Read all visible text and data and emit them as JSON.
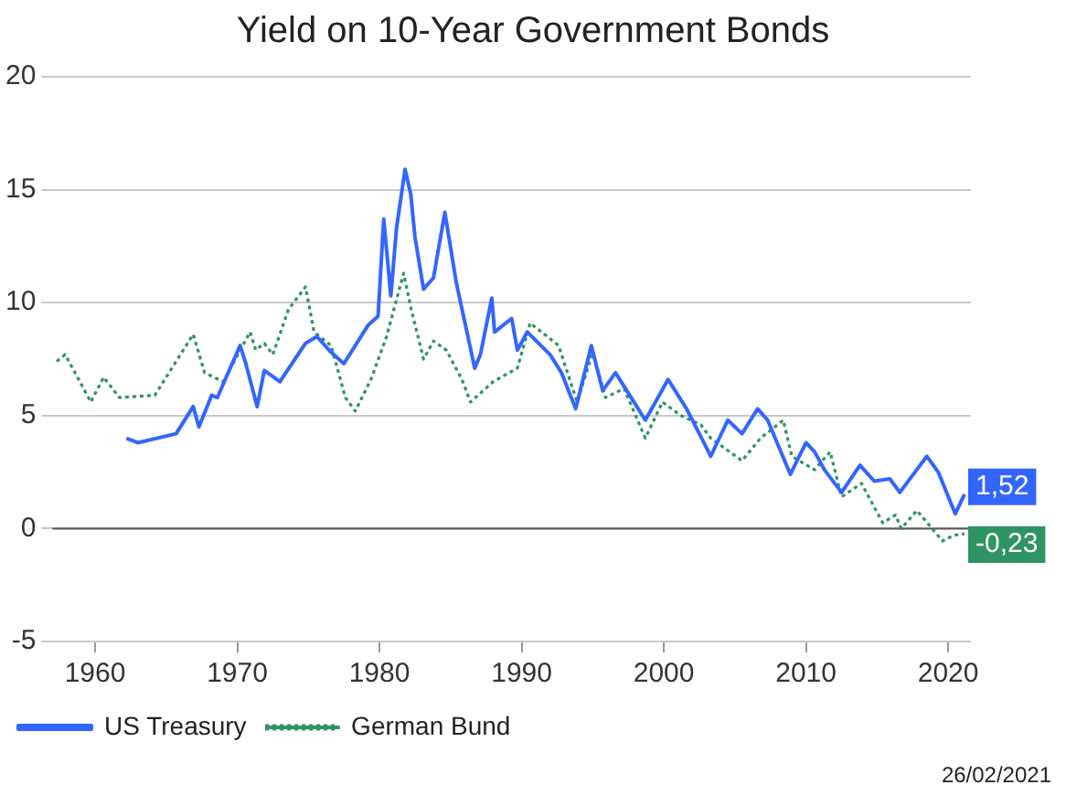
{
  "chart_data": {
    "type": "line",
    "title": "Yield on 10-Year Government Bonds",
    "xlim": [
      1957,
      2021.6
    ],
    "xticks": [
      1960,
      1970,
      1980,
      1990,
      2000,
      2010,
      2020
    ],
    "ylim": [
      -5,
      20
    ],
    "yticks": [
      -5,
      0,
      5,
      10,
      15,
      20
    ],
    "grid": "y",
    "legend": "bottom",
    "ref_lines": [
      {
        "axis": "y",
        "value": 0,
        "color": "#555555"
      }
    ],
    "series": [
      {
        "name": "US Treasury",
        "color": "#3366ff",
        "line_style": "solid",
        "x": [
          1962.2,
          1963.0,
          1965.7,
          1966.9,
          1967.3,
          1968.2,
          1968.6,
          1970.2,
          1970.6,
          1971.4,
          1971.9,
          1973.0,
          1974.8,
          1975.6,
          1976.6,
          1977.5,
          1979.2,
          1979.9,
          1980.3,
          1980.8,
          1981.2,
          1981.8,
          1982.2,
          1982.5,
          1983.1,
          1983.8,
          1984.6,
          1985.4,
          1986.7,
          1987.1,
          1987.9,
          1988.1,
          1989.3,
          1989.7,
          1990.4,
          1992.0,
          1992.8,
          1993.8,
          1994.9,
          1995.7,
          1996.6,
          1997.4,
          1998.7,
          2000.3,
          2001.6,
          2002.9,
          2003.3,
          2004.5,
          2005.5,
          2006.6,
          2007.3,
          2008.9,
          2010.0,
          2010.6,
          2011.3,
          2012.5,
          2013.8,
          2014.8,
          2015.9,
          2016.6,
          2018.5,
          2019.3,
          2020.5,
          2021.15
        ],
        "values": [
          4.0,
          3.8,
          4.2,
          5.4,
          4.5,
          5.9,
          5.8,
          8.1,
          7.3,
          5.4,
          7.0,
          6.5,
          8.2,
          8.5,
          7.8,
          7.3,
          9.0,
          9.4,
          13.7,
          10.3,
          13.3,
          15.9,
          14.8,
          12.9,
          10.6,
          11.1,
          14.0,
          10.9,
          7.1,
          7.7,
          10.2,
          8.7,
          9.3,
          7.9,
          8.7,
          7.7,
          6.9,
          5.3,
          8.1,
          6.1,
          6.9,
          6.1,
          4.8,
          6.6,
          5.3,
          3.7,
          3.2,
          4.8,
          4.2,
          5.3,
          4.8,
          2.4,
          3.8,
          3.4,
          2.6,
          1.6,
          2.8,
          2.1,
          2.2,
          1.6,
          3.2,
          2.5,
          0.65,
          1.52
        ]
      },
      {
        "name": "German Bund",
        "color": "#2e9461",
        "line_style": "dotted",
        "x": [
          1957.3,
          1957.9,
          1959.7,
          1960.6,
          1961.7,
          1964.2,
          1966.9,
          1967.7,
          1969.0,
          1970.9,
          1971.3,
          1971.9,
          1972.5,
          1973.6,
          1974.8,
          1975.4,
          1976.6,
          1977.6,
          1978.3,
          1979.4,
          1980.5,
          1981.7,
          1982.2,
          1983.1,
          1983.8,
          1984.7,
          1985.8,
          1986.4,
          1988.0,
          1989.7,
          1990.6,
          1992.6,
          1993.9,
          1995.0,
          1995.9,
          1997.2,
          1998.7,
          1999.9,
          2001.2,
          2002.6,
          2003.3,
          2005.5,
          2006.8,
          2008.4,
          2009.0,
          2010.6,
          2011.7,
          2012.5,
          2013.9,
          2015.4,
          2016.3,
          2016.7,
          2017.8,
          2019.6,
          2020.4,
          2021.15
        ],
        "values": [
          7.4,
          7.7,
          5.6,
          6.7,
          5.8,
          5.9,
          8.6,
          6.9,
          6.5,
          8.7,
          7.9,
          8.2,
          7.7,
          9.7,
          10.7,
          8.7,
          8.1,
          5.8,
          5.2,
          6.6,
          8.5,
          11.3,
          9.8,
          7.5,
          8.3,
          7.9,
          6.6,
          5.6,
          6.5,
          7.1,
          9.1,
          8.1,
          5.6,
          7.8,
          5.8,
          6.2,
          4.0,
          5.6,
          5.0,
          4.6,
          4.0,
          3.0,
          4.0,
          4.8,
          3.2,
          2.6,
          3.4,
          1.4,
          2.0,
          0.25,
          0.6,
          0.0,
          0.8,
          -0.55,
          -0.3,
          -0.23
        ]
      }
    ],
    "annotations": [
      {
        "text": "1,52",
        "x": 2021.15,
        "y": 1.52
      },
      {
        "text": "-0,23",
        "x": 2021.15,
        "y": -0.23
      },
      "26/02/2021"
    ]
  }
}
